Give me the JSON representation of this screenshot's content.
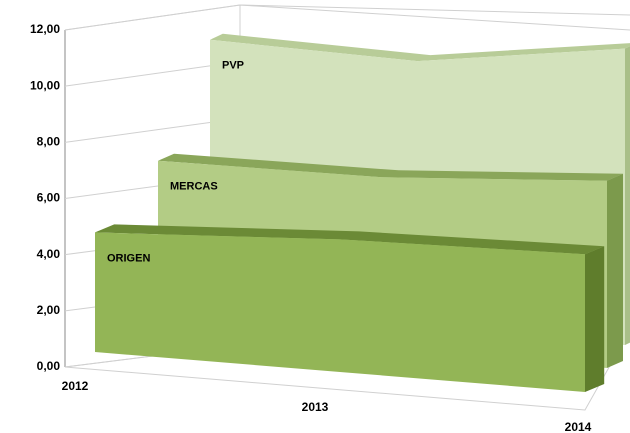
{
  "chart_data": {
    "type": "area3d",
    "categories": [
      "2012",
      "2013",
      "2014"
    ],
    "series": [
      {
        "name": "ORIGEN",
        "color": "#93b556",
        "values": [
          4.6,
          5.1,
          5.3
        ]
      },
      {
        "name": "MERCAS",
        "color": "#b3cc85",
        "values": [
          6.7,
          6.7,
          7.2
        ]
      },
      {
        "name": "PVP",
        "color": "#d3e2bc",
        "values": [
          10.7,
          10.4,
          11.4
        ]
      }
    ],
    "ylim": [
      0,
      12
    ],
    "yticks": [
      {
        "value": 0,
        "label": "0,00"
      },
      {
        "value": 2,
        "label": "2,00"
      },
      {
        "value": 4,
        "label": "4,00"
      },
      {
        "value": 6,
        "label": "6,00"
      },
      {
        "value": 8,
        "label": "8,00"
      },
      {
        "value": 10,
        "label": "10,00"
      },
      {
        "value": 12,
        "label": "12,00"
      }
    ],
    "grid": true
  }
}
